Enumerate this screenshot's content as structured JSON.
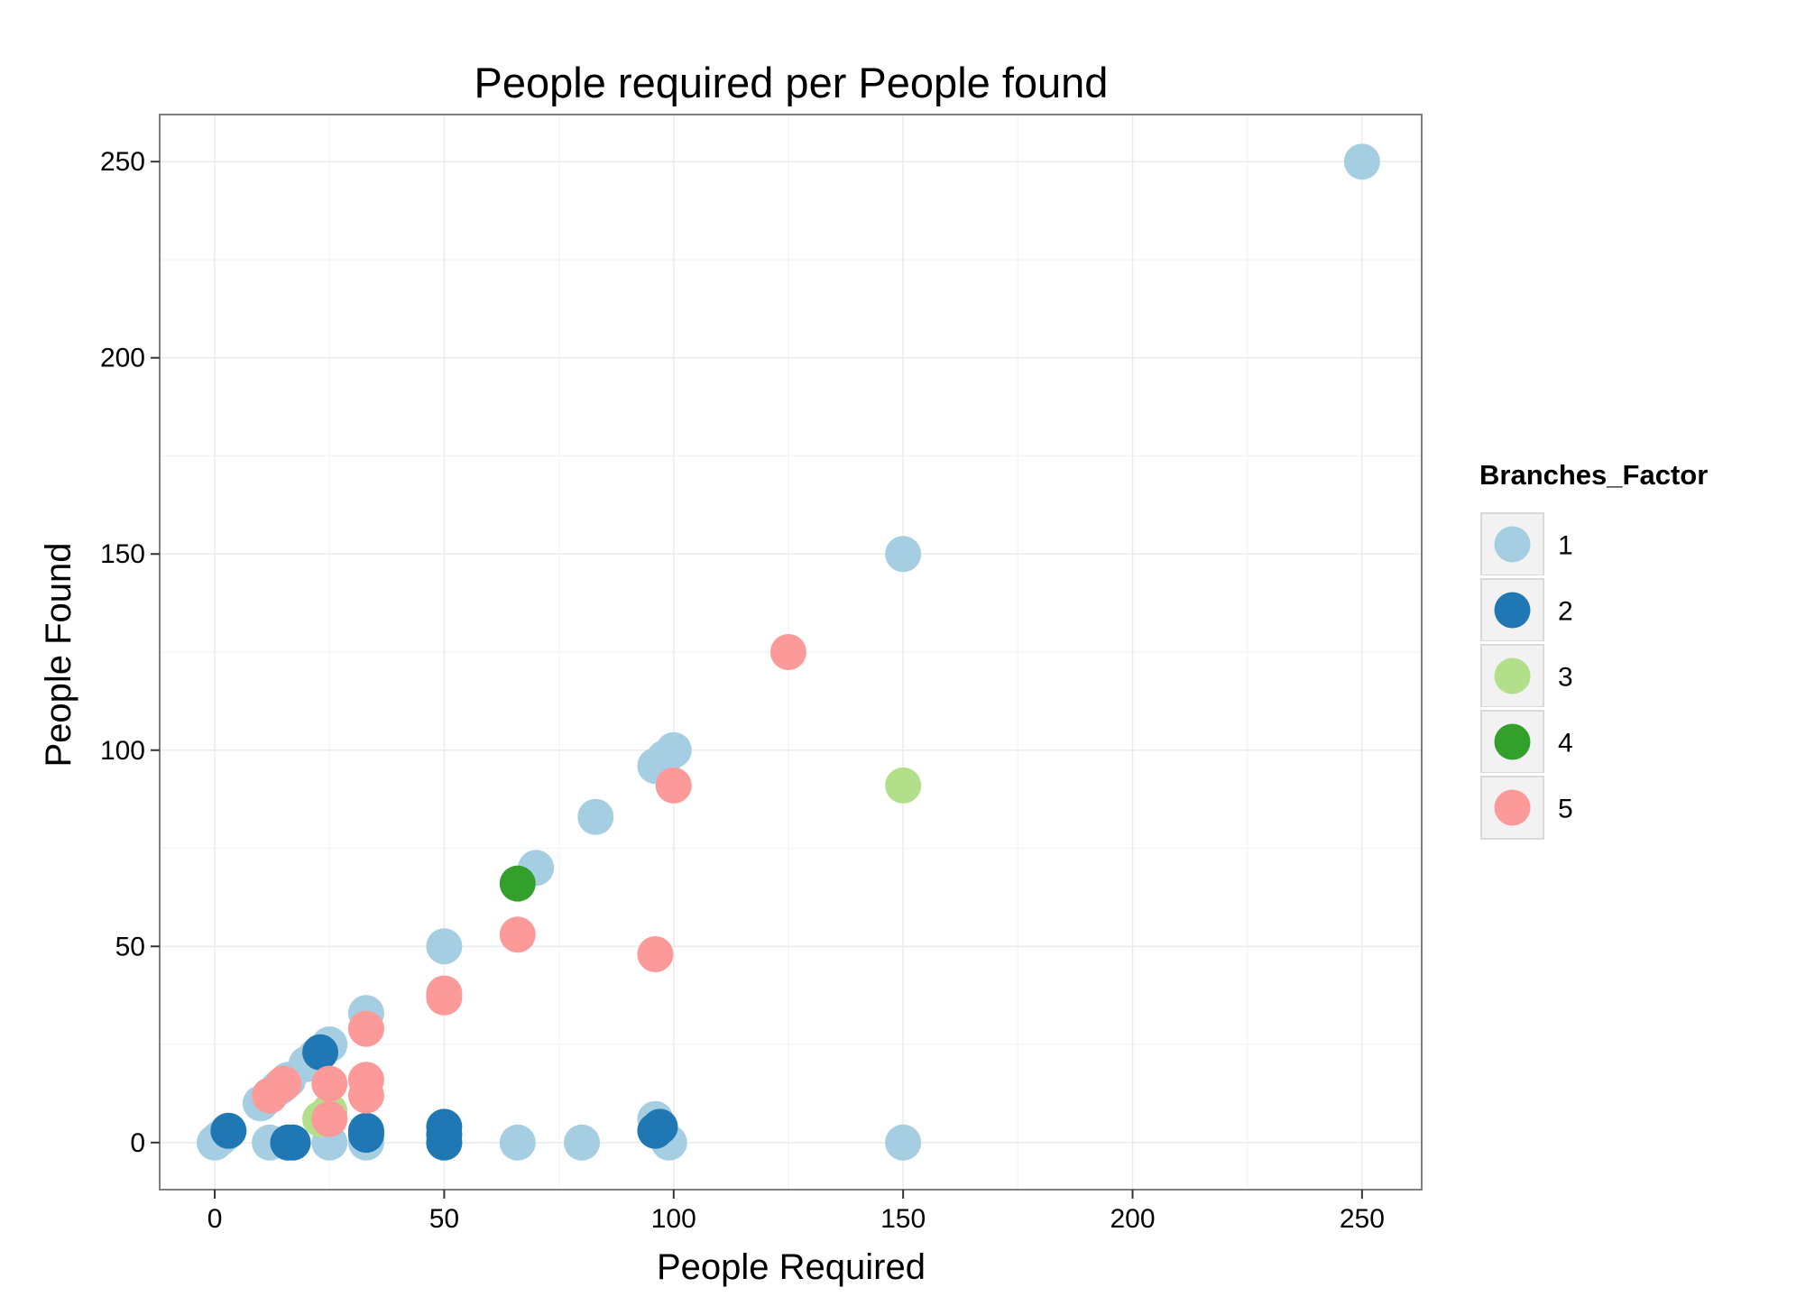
{
  "chart_data": {
    "type": "scatter",
    "title": "People required per People found",
    "xlabel": "People Required",
    "ylabel": "People Found",
    "xlim": [
      -12,
      263
    ],
    "ylim": [
      -12,
      262
    ],
    "xticks": [
      0,
      50,
      100,
      150,
      200,
      250
    ],
    "yticks": [
      0,
      50,
      100,
      150,
      200,
      250
    ],
    "grid": true,
    "legend": {
      "title": "Branches_Factor",
      "position": "right"
    },
    "series": [
      {
        "name": "1",
        "color": "#a6cee3",
        "points": [
          [
            0,
            0
          ],
          [
            1,
            1
          ],
          [
            2,
            2
          ],
          [
            10,
            10
          ],
          [
            12,
            12
          ],
          [
            14,
            14
          ],
          [
            16,
            16
          ],
          [
            20,
            20
          ],
          [
            22,
            22
          ],
          [
            25,
            25
          ],
          [
            33,
            33
          ],
          [
            50,
            50
          ],
          [
            70,
            70
          ],
          [
            83,
            83
          ],
          [
            96,
            96
          ],
          [
            98,
            98
          ],
          [
            100,
            100
          ],
          [
            150,
            150
          ],
          [
            250,
            250
          ],
          [
            12,
            0
          ],
          [
            25,
            0
          ],
          [
            33,
            0
          ],
          [
            66,
            0
          ],
          [
            80,
            0
          ],
          [
            96,
            6
          ],
          [
            99,
            0
          ],
          [
            150,
            0
          ]
        ]
      },
      {
        "name": "2",
        "color": "#1f78b4",
        "points": [
          [
            3,
            3
          ],
          [
            16,
            0
          ],
          [
            17,
            0
          ],
          [
            23,
            23
          ],
          [
            33,
            2
          ],
          [
            33,
            3
          ],
          [
            50,
            0
          ],
          [
            50,
            2
          ],
          [
            50,
            4
          ],
          [
            96,
            3
          ],
          [
            97,
            4
          ]
        ]
      },
      {
        "name": "3",
        "color": "#b2df8a",
        "points": [
          [
            23,
            6
          ],
          [
            25,
            8
          ],
          [
            150,
            91
          ]
        ]
      },
      {
        "name": "4",
        "color": "#33a02c",
        "points": [
          [
            66,
            66
          ]
        ]
      },
      {
        "name": "5",
        "color": "#fb9a99",
        "points": [
          [
            12,
            12
          ],
          [
            15,
            15
          ],
          [
            25,
            15
          ],
          [
            25,
            6
          ],
          [
            33,
            12
          ],
          [
            33,
            16
          ],
          [
            33,
            29
          ],
          [
            50,
            37
          ],
          [
            50,
            38
          ],
          [
            66,
            53
          ],
          [
            96,
            48
          ],
          [
            100,
            91
          ],
          [
            125,
            125
          ]
        ]
      }
    ]
  }
}
